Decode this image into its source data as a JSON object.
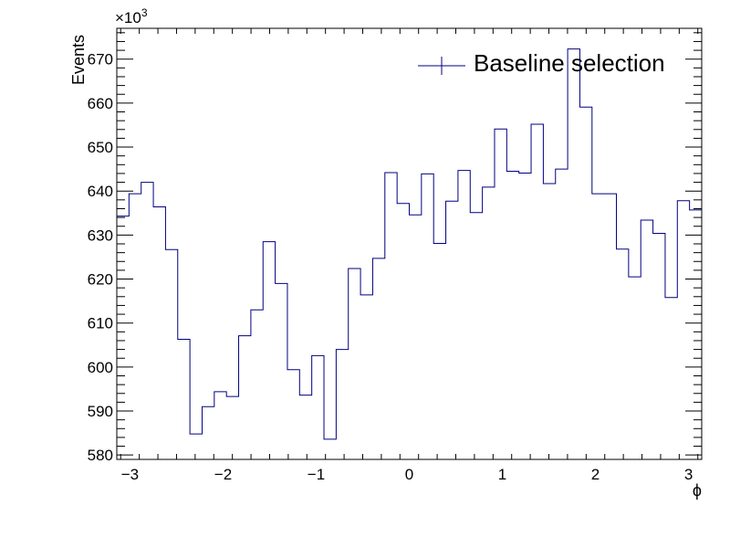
{
  "chart_data": {
    "type": "histogram",
    "xlabel": "ϕ",
    "ylabel": "Events",
    "y_multiplier": "×10",
    "y_multiplier_exp": "3",
    "xlim": [
      -3.1416,
      3.1416
    ],
    "ylim": [
      579,
      677
    ],
    "x_ticks": [
      -3,
      -2,
      -1,
      0,
      1,
      2,
      3
    ],
    "x_tick_labels": [
      "−3",
      "−2",
      "−1",
      "0",
      "1",
      "2",
      "3"
    ],
    "y_ticks": [
      580,
      590,
      600,
      610,
      620,
      630,
      640,
      650,
      660,
      670
    ],
    "y_tick_labels": [
      "580",
      "590",
      "600",
      "610",
      "620",
      "630",
      "640",
      "650",
      "660",
      "670"
    ],
    "legend": {
      "position": "top-right",
      "entry": "Baseline selection",
      "color": "#000080"
    },
    "series": [
      {
        "name": "Baseline selection",
        "color": "#000080",
        "bin_edges_start": -3.1416,
        "bin_edges_end": 3.1416,
        "values": [
          634.3,
          639.4,
          642.0,
          636.4,
          626.7,
          606.3,
          584.8,
          591.0,
          594.4,
          593.3,
          607.1,
          613.0,
          628.5,
          619.0,
          599.4,
          593.6,
          602.6,
          583.6,
          604.0,
          622.4,
          616.4,
          624.7,
          644.2,
          637.2,
          634.6,
          643.9,
          628.1,
          637.7,
          644.7,
          635.1,
          640.9,
          654.1,
          644.5,
          644.1,
          655.2,
          641.7,
          645.0,
          672.3,
          659.1,
          639.4,
          639.4,
          626.8,
          620.5,
          633.4,
          630.4,
          615.8,
          637.8,
          635.7
        ]
      }
    ]
  }
}
